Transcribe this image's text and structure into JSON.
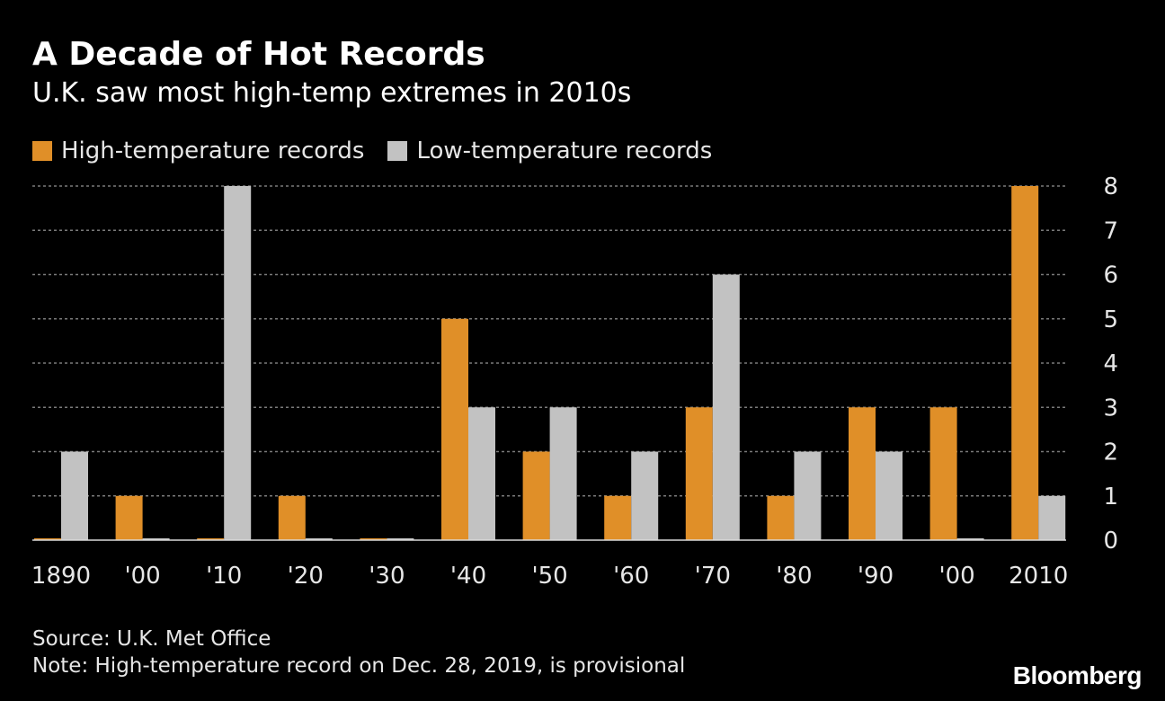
{
  "title": "A Decade of Hot Records",
  "subtitle": "U.K. saw most high-temp extremes in 2010s",
  "source": "Source: U.K. Met Office",
  "note": "Note: High-temperature record on Dec. 28, 2019, is provisional",
  "logo": "Bloomberg",
  "colors": {
    "background": "#000000",
    "high": "#e08f28",
    "low": "#c2c2c2",
    "grid": "#7a7a7a",
    "text": "#e6e6e6"
  },
  "chart_data": {
    "type": "bar",
    "categories": [
      "1890",
      "'00",
      "'10",
      "'20",
      "'30",
      "'40",
      "'50",
      "'60",
      "'70",
      "'80",
      "'90",
      "'00",
      "2010"
    ],
    "series": [
      {
        "name": "High-temperature records",
        "color": "#e08f28",
        "values": [
          0,
          1,
          0,
          1,
          0,
          5,
          2,
          1,
          3,
          1,
          3,
          3,
          8
        ]
      },
      {
        "name": "Low-temperature records",
        "color": "#c2c2c2",
        "values": [
          2,
          0,
          8,
          0,
          0,
          3,
          3,
          2,
          6,
          2,
          2,
          0,
          1
        ]
      }
    ],
    "yticks": [
      0,
      1,
      2,
      3,
      4,
      5,
      6,
      7,
      8
    ],
    "ylim": [
      0,
      8
    ],
    "yaxis_side": "right",
    "grid": true,
    "legend_position": "top-left"
  }
}
